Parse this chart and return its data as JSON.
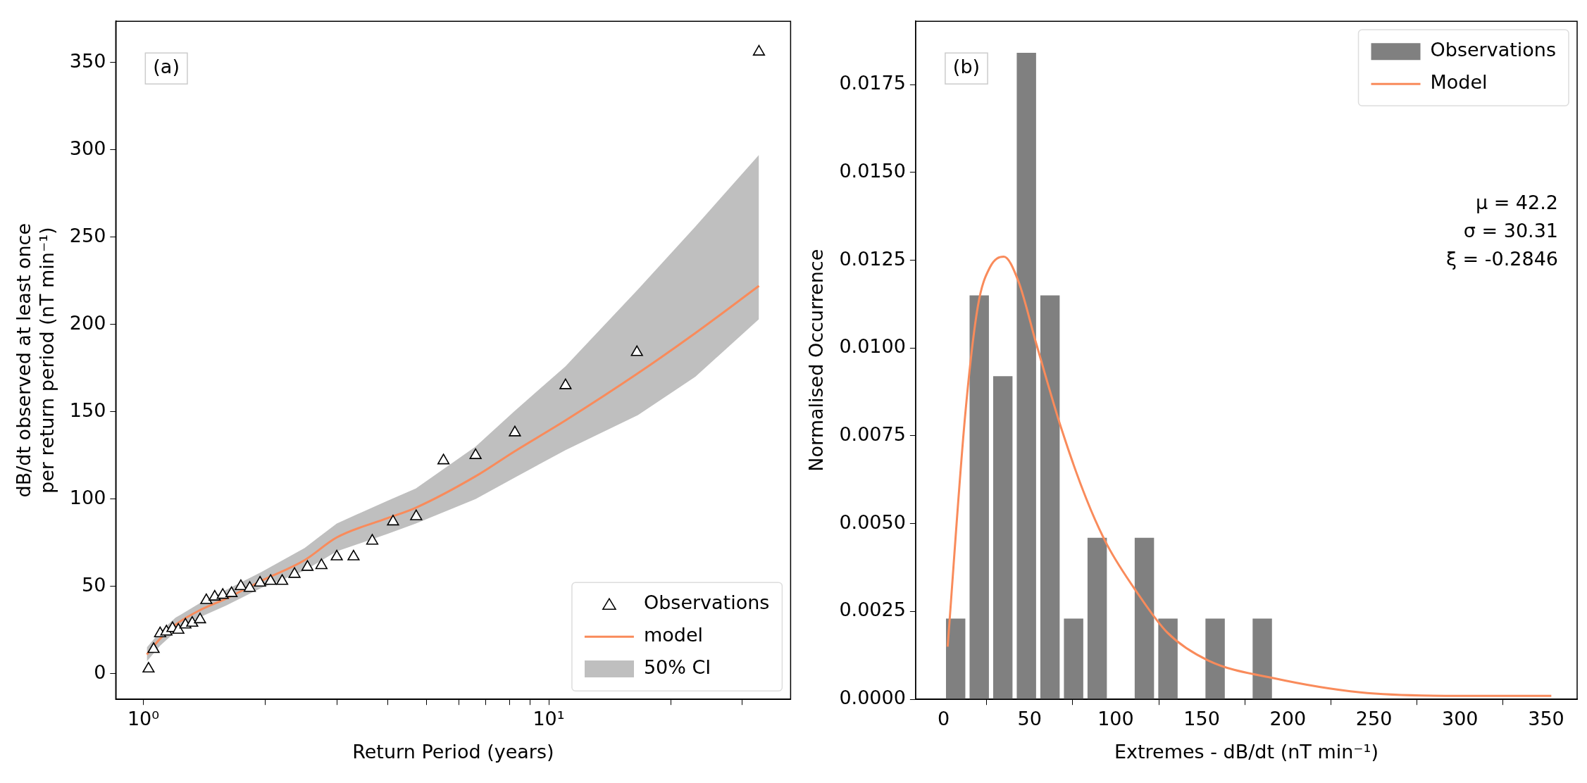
{
  "chart_data": [
    {
      "type": "scatter",
      "xlabel": "Return Period (years)",
      "ylabel": "dB/dt observed at least once\nper return period (nT min⁻¹)",
      "log": "x",
      "legend": "bottom right",
      "grid": false,
      "xlim": [
        0.855,
        39.5
      ],
      "xticks": [
        {
          "value": 1,
          "label": "10⁰"
        },
        {
          "value": 2,
          "label": null
        },
        {
          "value": 3,
          "label": null
        },
        {
          "value": 4,
          "label": null
        },
        {
          "value": 5,
          "label": null
        },
        {
          "value": 6,
          "label": null
        },
        {
          "value": 7,
          "label": null
        },
        {
          "value": 8,
          "label": null
        },
        {
          "value": 9,
          "label": null
        },
        {
          "value": 10,
          "label": "10¹"
        },
        {
          "value": 20,
          "label": null
        },
        {
          "value": 30,
          "label": null
        }
      ],
      "ylim": [
        -14.7,
        373.5
      ],
      "yticks": [
        0,
        50,
        100,
        150,
        200,
        250,
        300,
        350
      ],
      "annotations": [
        "(a)",
        "50% CI"
      ],
      "series": [
        {
          "name": "Observations",
          "color": "#000000",
          "marker": "triangle",
          "x": [
            1.03,
            1.06,
            1.1,
            1.14,
            1.18,
            1.22,
            1.27,
            1.32,
            1.38,
            1.43,
            1.5,
            1.57,
            1.65,
            1.74,
            1.83,
            1.94,
            2.06,
            2.2,
            2.36,
            2.54,
            2.75,
            3.0,
            3.3,
            3.67,
            4.13,
            4.71,
            5.5,
            6.6,
            8.25,
            11.0,
            16.5,
            33.0
          ],
          "values": [
            2.8,
            14,
            23,
            24,
            26,
            25,
            28,
            29,
            31,
            42,
            44,
            45,
            46,
            50,
            49,
            52,
            53,
            53,
            57,
            61,
            62,
            67,
            67,
            76,
            87,
            90,
            122,
            125,
            138,
            165,
            184,
            356
          ]
        },
        {
          "type": "line",
          "name": "model",
          "color": "#f98b5b",
          "x": [
            1.02,
            1.1,
            1.2,
            1.37,
            1.6,
            1.95,
            2.5,
            3.0,
            4.0,
            4.7,
            6.6,
            8.2,
            11,
            16.6,
            23,
            33
          ],
          "values": [
            11,
            20,
            28,
            36,
            43,
            53,
            65,
            78,
            89,
            95,
            113,
            127,
            145,
            172,
            195,
            222
          ],
          "lower": [
            7,
            16,
            24,
            32,
            39,
            49,
            59,
            70,
            80,
            86,
            100,
            112,
            128,
            148,
            170,
            203
          ],
          "upper": [
            15,
            24,
            32,
            40,
            48,
            58,
            72,
            86,
            99,
            106,
            130,
            150,
            176,
            220,
            256,
            297
          ]
        }
      ]
    },
    {
      "type": "histogram",
      "xlabel": "Extremes - dB/dt (nT min⁻¹)",
      "ylabel": "Normalised Occurrence",
      "legend": "top right",
      "grid": false,
      "xlim": [
        -16.2,
        368
      ],
      "xticks": [
        0,
        50,
        100,
        150,
        200,
        250,
        300,
        350
      ],
      "ylim": [
        0,
        0.0193
      ],
      "yticks": [
        {
          "value": 0,
          "label": "0.0000"
        },
        {
          "value": 0.0025,
          "label": "0.0025"
        },
        {
          "value": 0.005,
          "label": "0.0050"
        },
        {
          "value": 0.0075,
          "label": "0.0075"
        },
        {
          "value": 0.01,
          "label": "0.0100"
        },
        {
          "value": 0.0125,
          "label": "0.0125"
        },
        {
          "value": 0.015,
          "label": "0.0150"
        },
        {
          "value": 0.0175,
          "label": "0.0175"
        }
      ],
      "annotations": [
        "(b)",
        "μ = 42.2",
        "σ = 30.31",
        "ξ = -0.2846"
      ],
      "series": [
        {
          "name": "Observations",
          "color": "#808080",
          "bins": [
            0.2,
            13.9,
            27.6,
            41.3,
            55,
            68.7,
            82.4,
            96.1,
            109.8,
            123.5,
            137.2,
            150.9,
            164.6,
            178.3,
            192
          ],
          "values": [
            0.0023,
            0.0115,
            0.0092,
            0.0184,
            0.0115,
            0.0023,
            0.0046,
            0,
            0.0046,
            0.0023,
            0,
            0.0023,
            0,
            0.0023
          ]
        },
        {
          "type": "line",
          "name": "Model",
          "color": "#f98b5b",
          "x": [
            2.4,
            12.6,
            20,
            27,
            35,
            43.5,
            54,
            68.5,
            83,
            95,
            113,
            130,
            154,
            192,
            242,
            300,
            353
          ],
          "values": [
            0.0015,
            0.0081,
            0.0112,
            0.0123,
            0.0126,
            0.0119,
            0.0101,
            0.0077,
            0.0057,
            0.0044,
            0.003,
            0.0019,
            0.0011,
            0.0006,
            0.0002,
            0.0001,
            0.0001
          ]
        }
      ]
    }
  ]
}
